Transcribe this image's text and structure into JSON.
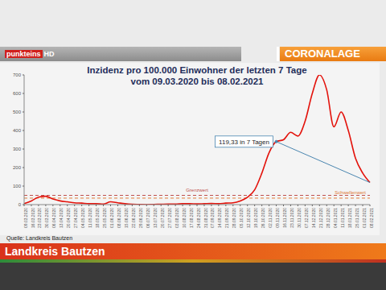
{
  "header": {
    "logo": "punkteins",
    "logo_suffix": "HD",
    "topic": "CORONALAGE"
  },
  "footer": {
    "source": "Quelle: Landkreis Bautzen",
    "region": "Landkreis Bautzen"
  },
  "chart_data": {
    "type": "line",
    "title": "Inzidenz pro 100.000 Einwohner der letzten 7 Tage",
    "subtitle": "vom 09.03.2020 bis 08.02.2021",
    "categories": [
      "09.03.2020",
      "16.03.2020",
      "23.03.2020",
      "30.03.2020",
      "06.04.2020",
      "13.04.2020",
      "20.04.2020",
      "27.04.2020",
      "04.05.2020",
      "11.05.2020",
      "18.05.2020",
      "25.05.2020",
      "01.06.2020",
      "08.06.2020",
      "15.06.2020",
      "22.06.2020",
      "29.06.2020",
      "06.07.2020",
      "13.07.2020",
      "20.07.2020",
      "27.07.2020",
      "03.08.2020",
      "10.08.2020",
      "17.08.2020",
      "24.08.2020",
      "31.08.2020",
      "07.09.2020",
      "14.09.2020",
      "21.09.2020",
      "28.09.2020",
      "05.10.2020",
      "12.10.2020",
      "19.10.2020",
      "26.10.2020",
      "02.11.2020",
      "09.11.2020",
      "16.11.2020",
      "23.11.2020",
      "30.11.2020",
      "07.12.2020",
      "14.12.2020",
      "21.12.2020",
      "28.12.2020",
      "04.01.2021",
      "11.01.2021",
      "18.01.2021",
      "25.01.2021",
      "01.02.2021",
      "08.02.2021"
    ],
    "values": [
      5,
      20,
      40,
      45,
      30,
      20,
      15,
      10,
      8,
      5,
      5,
      3,
      15,
      10,
      5,
      2,
      1,
      0,
      1,
      2,
      3,
      3,
      5,
      5,
      4,
      5,
      6,
      5,
      8,
      10,
      20,
      40,
      80,
      170,
      280,
      340,
      350,
      390,
      370,
      450,
      600,
      700,
      620,
      420,
      500,
      400,
      250,
      170,
      119.33
    ],
    "color": "#e3120b",
    "ylim": [
      0,
      700
    ],
    "yticks": [
      0,
      100,
      200,
      300,
      400,
      500,
      600,
      700
    ],
    "grid": false,
    "reference_lines": [
      {
        "label": "Grenzwert",
        "value": 50,
        "color": "#c0504d",
        "line_style": "dashed"
      },
      {
        "label": "Schwellenwert",
        "value": 35,
        "color": "#e07b39",
        "line_style": "dashed"
      }
    ],
    "annotations": [
      {
        "text": "119,33 in 7 Tagen",
        "start": {
          "x": "09.11.2020",
          "y": 340
        },
        "end": {
          "x": "08.02.2021",
          "y": 119.33
        },
        "color": "#4a86b0"
      }
    ]
  }
}
